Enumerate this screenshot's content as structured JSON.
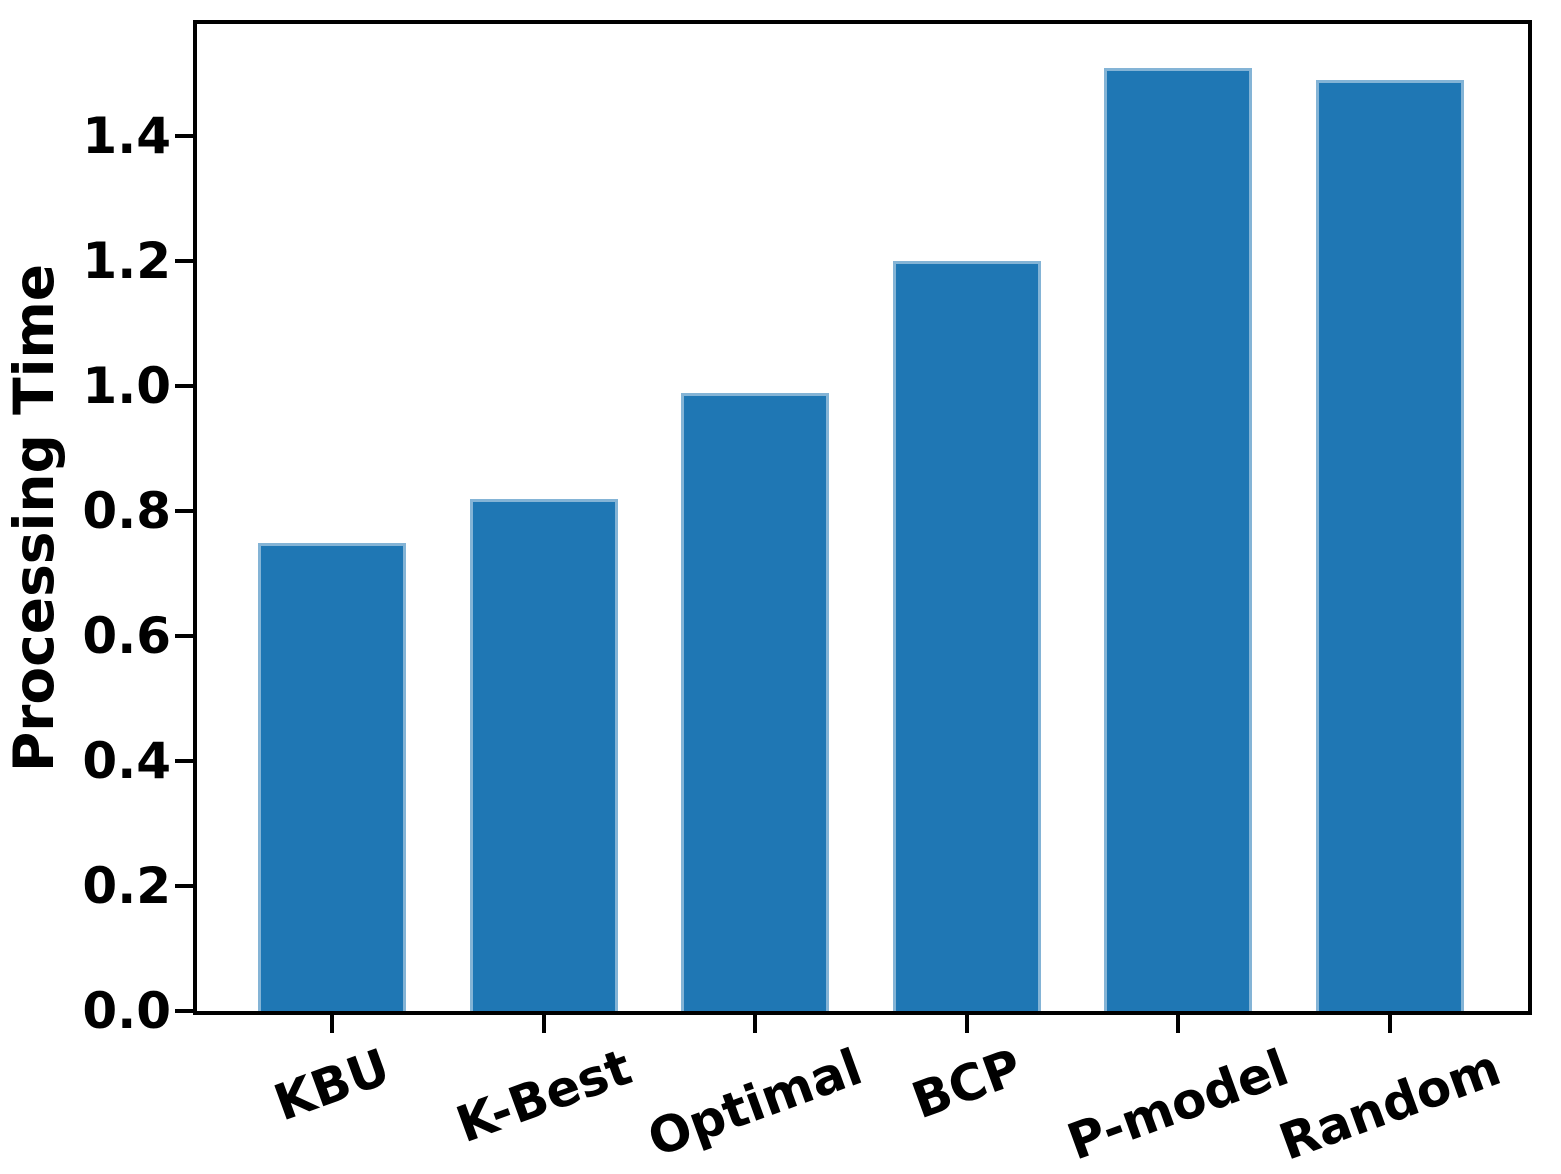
{
  "chart_data": {
    "type": "bar",
    "title": "",
    "xlabel": "",
    "ylabel": "Processing Time",
    "categories": [
      "KBU",
      "K-Best",
      "Optimal",
      "BCP",
      "P-model",
      "Random"
    ],
    "values": [
      0.75,
      0.82,
      0.99,
      1.2,
      1.51,
      1.49
    ],
    "ytick_labels": [
      "0.0",
      "0.2",
      "0.4",
      "0.6",
      "0.8",
      "1.0",
      "1.2",
      "1.4"
    ],
    "yticks": [
      0.0,
      0.2,
      0.4,
      0.6,
      0.8,
      1.0,
      1.2,
      1.4
    ],
    "ylim": [
      0,
      1.58
    ],
    "grid": false,
    "legend": null,
    "bar_color": "#1f77b4",
    "bar_edge_color": "#84b4d6",
    "axis_color": "#000000",
    "x_tick_rotation_deg": 20
  }
}
